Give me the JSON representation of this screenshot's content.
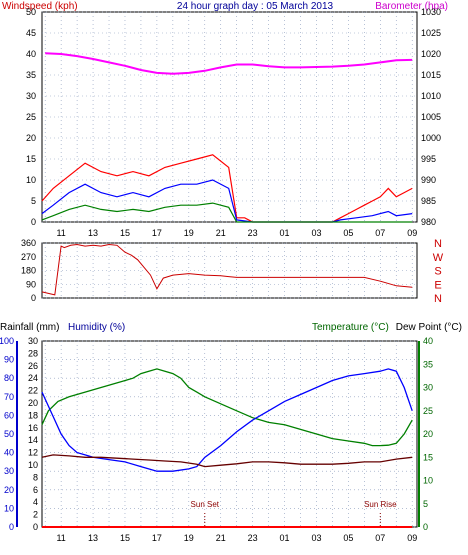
{
  "chart_data": [
    {
      "type": "line",
      "title": "24 hour graph day : 05 March 2013",
      "left_axis": {
        "label": "Windspeed (kph)",
        "ticks": [
          0,
          5,
          10,
          15,
          20,
          25,
          30,
          35,
          40,
          45,
          50
        ],
        "ylim": [
          0,
          50
        ],
        "color": "#cc0000"
      },
      "right_axis": {
        "label": "Barometer (hpa)",
        "ticks": [
          980,
          985,
          990,
          995,
          1000,
          1005,
          1010,
          1015,
          1020,
          1025,
          1030
        ],
        "ylim": [
          980,
          1030
        ],
        "color": "#cc00cc"
      },
      "x_ticks": [
        "11",
        "13",
        "15",
        "17",
        "19",
        "21",
        "23",
        "01",
        "03",
        "05",
        "07",
        "09"
      ],
      "grid": true,
      "series": [
        {
          "axis": "right",
          "color": "#ff00ff",
          "x": [
            10,
            11,
            12,
            13,
            14,
            15,
            16,
            17,
            18,
            19,
            20,
            21,
            22,
            23,
            0,
            1,
            2,
            3,
            4,
            5,
            6,
            7,
            8,
            9
          ],
          "values": [
            1020.2,
            1020.0,
            1019.5,
            1018.8,
            1018.0,
            1017.2,
            1016.2,
            1015.5,
            1015.3,
            1015.5,
            1016.0,
            1016.8,
            1017.5,
            1017.5,
            1017.1,
            1016.8,
            1016.8,
            1016.9,
            1017.0,
            1017.2,
            1017.5,
            1018.0,
            1018.5,
            1018.6
          ]
        },
        {
          "axis": "left",
          "color": "#ff0000",
          "x": [
            9.8,
            10.5,
            11.5,
            12.5,
            13.5,
            14.5,
            15.5,
            16.5,
            17.5,
            18.5,
            19.5,
            20.5,
            21.5,
            22,
            22.5,
            23,
            24,
            26,
            28,
            28.5,
            29,
            29.5,
            30,
            30.5,
            31,
            31.5,
            32,
            32.5,
            33
          ],
          "values": [
            5,
            8,
            11,
            14,
            12,
            11,
            12,
            11,
            13,
            14,
            15,
            16,
            13,
            1,
            1,
            0,
            0,
            0,
            0,
            1,
            2,
            3,
            4,
            5,
            6,
            8,
            6,
            7,
            8
          ]
        },
        {
          "axis": "left",
          "color": "#0000ff",
          "x": [
            9.8,
            10.5,
            11.5,
            12.5,
            13.5,
            14.5,
            15.5,
            16.5,
            17.5,
            18.5,
            19.5,
            20.5,
            21.5,
            22,
            23,
            28,
            28.5,
            29.5,
            30.5,
            31.5,
            32,
            33
          ],
          "values": [
            2,
            4,
            7,
            9,
            7,
            6,
            7,
            6,
            8,
            9,
            9,
            10,
            8,
            0.5,
            0,
            0,
            0.5,
            1,
            1.5,
            2.5,
            1.5,
            2
          ]
        },
        {
          "axis": "left",
          "color": "#008000",
          "x": [
            9.8,
            10.5,
            11.5,
            12.5,
            13.5,
            14.5,
            15.5,
            16.5,
            17.5,
            18.5,
            19.5,
            20.5,
            21.5,
            22,
            23,
            33
          ],
          "values": [
            0.5,
            1.5,
            3,
            4,
            3,
            2.5,
            3,
            2.5,
            3.5,
            4,
            4,
            4.5,
            3.5,
            0,
            0,
            0
          ]
        }
      ]
    },
    {
      "type": "line",
      "left_axis": {
        "ticks": [
          0,
          90,
          180,
          270,
          360
        ],
        "ylim": [
          0,
          360
        ]
      },
      "right_labels": [
        "N",
        "W",
        "S",
        "E",
        "N"
      ],
      "x_ticks": [
        "11",
        "13",
        "15",
        "17",
        "19",
        "21",
        "23",
        "01",
        "03",
        "05",
        "07",
        "09"
      ],
      "grid": true,
      "series": [
        {
          "color": "#cc0000",
          "x": [
            9.8,
            10.2,
            10.6,
            11.0,
            11.2,
            11.6,
            12.0,
            12.5,
            13.0,
            13.5,
            14.0,
            14.5,
            15.0,
            15.4,
            15.8,
            16.2,
            16.6,
            17.0,
            17.4,
            18.0,
            19.0,
            20.0,
            21.0,
            21.5,
            22.0,
            23.0,
            28.0,
            30.0,
            31.0,
            32.0,
            33.0
          ],
          "values": [
            40,
            30,
            20,
            340,
            330,
            345,
            350,
            340,
            345,
            340,
            350,
            345,
            300,
            280,
            250,
            200,
            150,
            60,
            130,
            150,
            160,
            150,
            145,
            140,
            135,
            135,
            135,
            135,
            110,
            80,
            70
          ]
        }
      ]
    },
    {
      "type": "line",
      "left_labels": {
        "rainfall": "Rainfall (mm)",
        "humidity": "Humidity (%)"
      },
      "right_labels": {
        "temperature": "Temperature (°C)",
        "dewpoint": "Dew Point (°C)"
      },
      "humidity_ticks": [
        0,
        10,
        20,
        30,
        40,
        50,
        60,
        70,
        80,
        90,
        100
      ],
      "rain_ticks": [
        0,
        2,
        4,
        6,
        8,
        10,
        12,
        14,
        16,
        18,
        20,
        22,
        24,
        26,
        28,
        30
      ],
      "temp_ticks": [
        0,
        5,
        10,
        15,
        20,
        25,
        30,
        35,
        40
      ],
      "x_ticks": [
        "11",
        "13",
        "15",
        "17",
        "19",
        "21",
        "23",
        "01",
        "03",
        "05",
        "07",
        "09"
      ],
      "grid": true,
      "annotations": [
        {
          "text": "Sun Set",
          "x": 20.0
        },
        {
          "text": "Sun Rise",
          "x": 31.0
        }
      ],
      "series": [
        {
          "color": "#008000",
          "axis": "temp",
          "x": [
            9.8,
            10.2,
            10.8,
            11.5,
            12.5,
            13.5,
            14.5,
            15.5,
            16.0,
            16.5,
            17.0,
            17.5,
            18.0,
            18.5,
            19.0,
            19.5,
            20.0,
            21.0,
            22.0,
            23.0,
            24.0,
            25.0,
            26.0,
            27.0,
            28.0,
            29.0,
            30.0,
            30.5,
            31.0,
            31.5,
            32.0,
            32.5,
            33.0
          ],
          "values": [
            22,
            25,
            27,
            28,
            29,
            30,
            31,
            32,
            33,
            33.5,
            34,
            33.5,
            33,
            32,
            30,
            29,
            28,
            26.5,
            25,
            23.5,
            22.5,
            22,
            21,
            20,
            19,
            18.5,
            18,
            17.5,
            17.5,
            17.6,
            18,
            20,
            23
          ]
        },
        {
          "color": "#0000ff",
          "axis": "temp",
          "x": [
            9.8,
            10.2,
            10.6,
            11.0,
            11.5,
            12.0,
            12.5,
            13.0,
            14.0,
            15.0,
            16.0,
            17.0,
            18.0,
            19.0,
            19.5,
            20.0,
            21.0,
            22.0,
            23.0,
            24.0,
            25.0,
            26.0,
            27.0,
            28.0,
            29.0,
            30.0,
            31.0,
            31.5,
            32.0,
            32.5,
            33.0
          ],
          "values": [
            29,
            26,
            23,
            20,
            17.5,
            16,
            15.5,
            15,
            14.5,
            14,
            13,
            12,
            12,
            12.5,
            13,
            15,
            17.5,
            20.5,
            23,
            25,
            27,
            28.5,
            30,
            31.5,
            32.5,
            33,
            33.5,
            34,
            33.5,
            30,
            25
          ]
        },
        {
          "color": "#660000",
          "axis": "temp",
          "x": [
            9.8,
            10.5,
            11.5,
            12.5,
            13.5,
            14.5,
            15.5,
            16.5,
            17.5,
            18.5,
            19.5,
            20.0,
            21.0,
            22.0,
            23.0,
            24.0,
            25.0,
            26.0,
            27.0,
            28.0,
            29.0,
            30.0,
            31.0,
            32.0,
            33.0
          ],
          "values": [
            15,
            15.5,
            15.3,
            15,
            15,
            14.8,
            14.6,
            14.4,
            14.2,
            14,
            13.5,
            13,
            13.3,
            13.6,
            14,
            14,
            13.8,
            13.5,
            13.5,
            13.5,
            13.7,
            14,
            14,
            14.6,
            15
          ]
        },
        {
          "color": "#ff0000",
          "axis": "rain",
          "x": [
            9.8,
            33.0
          ],
          "values": [
            0,
            0
          ]
        }
      ]
    }
  ],
  "colors": {
    "wind_gust": "#ff0000",
    "wind_avg": "#0000ff",
    "wind_low": "#008000",
    "barometer": "#ff00ff",
    "direction": "#cc0000",
    "temperature": "#008000",
    "humidity": "#0000ff",
    "dew_point": "#660000",
    "rainfall": "#ff0000",
    "sun_marker": "#8b0000"
  },
  "icons": []
}
